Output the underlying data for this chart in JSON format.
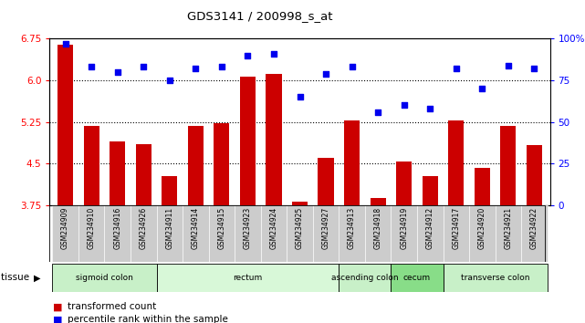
{
  "title": "GDS3141 / 200998_s_at",
  "samples": [
    "GSM234909",
    "GSM234910",
    "GSM234916",
    "GSM234926",
    "GSM234911",
    "GSM234914",
    "GSM234915",
    "GSM234923",
    "GSM234924",
    "GSM234925",
    "GSM234927",
    "GSM234913",
    "GSM234918",
    "GSM234919",
    "GSM234912",
    "GSM234917",
    "GSM234920",
    "GSM234921",
    "GSM234922"
  ],
  "bar_values": [
    6.65,
    5.17,
    4.9,
    4.85,
    4.27,
    5.18,
    5.22,
    6.07,
    6.12,
    3.82,
    4.6,
    5.27,
    3.88,
    4.54,
    4.28,
    5.27,
    4.42,
    5.18,
    4.83
  ],
  "dot_values": [
    97,
    83,
    80,
    83,
    75,
    82,
    83,
    90,
    91,
    65,
    79,
    83,
    56,
    60,
    58,
    82,
    70,
    84,
    82
  ],
  "ylim_left": [
    3.75,
    6.75
  ],
  "ylim_right": [
    0,
    100
  ],
  "yticks_left": [
    3.75,
    4.5,
    5.25,
    6.0,
    6.75
  ],
  "yticks_right": [
    0,
    25,
    50,
    75,
    100
  ],
  "hlines": [
    6.0,
    5.25,
    4.5
  ],
  "bar_color": "#cc0000",
  "dot_color": "#0000ee",
  "bar_width": 0.6,
  "tissue_groups": [
    {
      "label": "sigmoid colon",
      "start": 0,
      "end": 4,
      "color": "#c8f0c8"
    },
    {
      "label": "rectum",
      "start": 4,
      "end": 11,
      "color": "#d8f8d8"
    },
    {
      "label": "ascending colon",
      "start": 11,
      "end": 13,
      "color": "#c8f0c8"
    },
    {
      "label": "cecum",
      "start": 13,
      "end": 15,
      "color": "#88dd88"
    },
    {
      "label": "transverse colon",
      "start": 15,
      "end": 19,
      "color": "#c8f0c8"
    }
  ],
  "legend_bar": "transformed count",
  "legend_dot": "percentile rank within the sample",
  "tick_area_color": "#cccccc"
}
